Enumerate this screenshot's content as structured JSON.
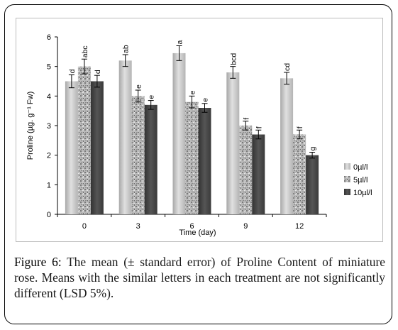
{
  "caption": {
    "label": "Figure 6:",
    "text": " The mean (± standard error) of Proline Content of miniature rose. Means with the similar letters in each treatment are not significantly different (LSD 5%)."
  },
  "chart_data": {
    "type": "bar",
    "xlabel": "Time (day)",
    "ylabel": "Proline (µg. g⁻¹ Fw)",
    "ylim": [
      0,
      6
    ],
    "yticks": [
      "0",
      "1",
      "2",
      "3",
      "4",
      "5",
      "6"
    ],
    "categories": [
      "0",
      "3",
      "6",
      "9",
      "12"
    ],
    "grid": false,
    "legend_position": "right",
    "series": [
      {
        "name": "0µl/l",
        "color": "#c8c8c8",
        "pattern": "light-gradient",
        "values": [
          4.5,
          5.2,
          5.45,
          4.8,
          4.6
        ],
        "errors": [
          0.22,
          0.2,
          0.25,
          0.2,
          0.2
        ],
        "letters": [
          "d",
          "ab",
          "a",
          "bcd",
          "cd"
        ]
      },
      {
        "name": "5µl/l",
        "color": "#9a9a9a",
        "pattern": "speckled",
        "values": [
          5.0,
          4.0,
          3.8,
          3.0,
          2.7
        ],
        "errors": [
          0.25,
          0.2,
          0.2,
          0.15,
          0.15
        ],
        "letters": [
          "abc",
          "e",
          "e",
          "f",
          "f"
        ]
      },
      {
        "name": "10µl/l",
        "color": "#4a4a4a",
        "pattern": "solid-dark",
        "values": [
          4.5,
          3.7,
          3.6,
          2.7,
          2.0
        ],
        "errors": [
          0.2,
          0.15,
          0.15,
          0.15,
          0.1
        ],
        "letters": [
          "d",
          "e",
          "e",
          "f",
          "g"
        ]
      }
    ]
  }
}
